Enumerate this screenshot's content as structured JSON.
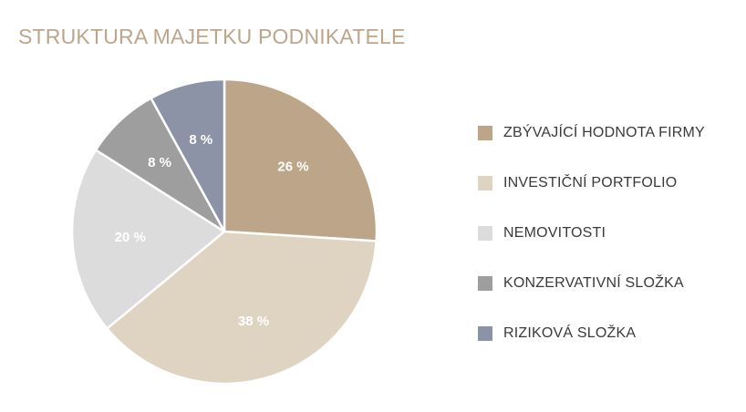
{
  "chart_data": {
    "type": "pie",
    "title": "STRUKTURA MAJETKU PODNIKATELE",
    "legend_position": "right",
    "slices": [
      {
        "label": "ZBÝVAJÍCÍ HODNOTA FIRMY",
        "value": 26,
        "value_label": "26 %",
        "color": "#bda58a"
      },
      {
        "label": "INVESTIČNÍ PORTFOLIO",
        "value": 38,
        "value_label": "38 %",
        "color": "#dfd3c2"
      },
      {
        "label": "NEMOVITOSTI",
        "value": 20,
        "value_label": "20 %",
        "color": "#dcdcdc"
      },
      {
        "label": "KONZERVATIVNÍ SLOŽKA",
        "value": 8,
        "value_label": "8 %",
        "color": "#9e9e9e"
      },
      {
        "label": "RIZIKOVÁ SLOŽKA",
        "value": 8,
        "value_label": "8 %",
        "color": "#8c93a6"
      }
    ]
  }
}
